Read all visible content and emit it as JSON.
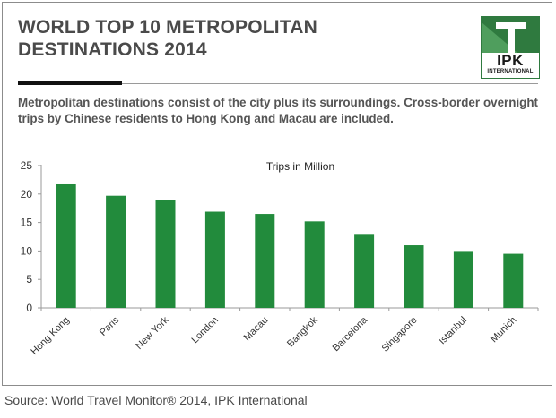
{
  "header": {
    "title_line1": "WORLD TOP 10 METROPOLITAN",
    "title_line2": "DESTINATIONS 2014"
  },
  "logo": {
    "word": "IPK",
    "sub": "INTERNATIONAL",
    "color": "#2f7a3f"
  },
  "description": "Metropolitan destinations consist of the city plus its surroundings. Cross-border overnight trips by Chinese residents to Hong Kong and Macau are included.",
  "source": "Source: World Travel Monitor® 2014, IPK International",
  "chart_data": {
    "type": "bar",
    "title": "Trips in Million",
    "categories": [
      "Hong Kong",
      "Paris",
      "New York",
      "London",
      "Macau",
      "Bangkok",
      "Barcelona",
      "Singapore",
      "Istanbul",
      "Munich"
    ],
    "values": [
      21.7,
      19.7,
      19.0,
      16.9,
      16.5,
      15.2,
      13.0,
      11.0,
      10.0,
      9.5
    ],
    "ylim": [
      0,
      25
    ],
    "yticks": [
      0,
      5,
      10,
      15,
      20,
      25
    ],
    "xlabel": "",
    "ylabel": "",
    "grid": false,
    "bar_color": "#228b3c"
  }
}
